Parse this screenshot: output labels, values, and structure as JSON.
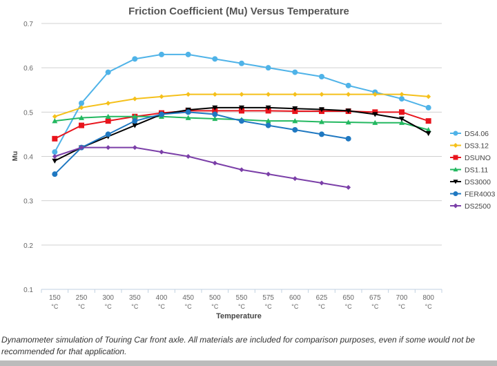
{
  "chart_data": {
    "type": "line",
    "title": "Friction Coefficient (Mu) Versus Temperature",
    "xlabel": "Temperature",
    "ylabel": "Mu",
    "ylim": [
      0.1,
      0.7
    ],
    "yticks": [
      "0.1",
      "0.2",
      "0.3",
      "0.4",
      "0.5",
      "0.6",
      "0.7"
    ],
    "grid": true,
    "legend_position": "right",
    "categories": [
      "150",
      "250",
      "300",
      "350",
      "400",
      "450",
      "500",
      "550",
      "575",
      "600",
      "625",
      "650",
      "675",
      "700",
      "800"
    ],
    "category_unit": "°C",
    "series": [
      {
        "name": "DS4.06",
        "color": "#4fb3e8",
        "marker": "circle",
        "values": [
          0.41,
          0.52,
          0.59,
          0.62,
          0.63,
          0.63,
          0.62,
          0.61,
          0.6,
          0.59,
          0.58,
          0.56,
          0.545,
          0.53,
          0.51
        ]
      },
      {
        "name": "DS3.12",
        "color": "#f5c01a",
        "marker": "diamond",
        "values": [
          0.49,
          0.51,
          0.52,
          0.53,
          0.535,
          0.54,
          0.54,
          0.54,
          0.54,
          0.54,
          0.54,
          0.54,
          0.54,
          0.54,
          0.535
        ]
      },
      {
        "name": "DSUNO",
        "color": "#e8141c",
        "marker": "square",
        "values": [
          0.44,
          0.47,
          0.48,
          0.49,
          0.498,
          0.503,
          0.503,
          0.503,
          0.503,
          0.502,
          0.502,
          0.502,
          0.5,
          0.5,
          0.48
        ]
      },
      {
        "name": "DS1.11",
        "color": "#23b860",
        "marker": "triangle",
        "values": [
          0.48,
          0.487,
          0.49,
          0.49,
          0.49,
          0.487,
          0.485,
          0.483,
          0.48,
          0.48,
          0.478,
          0.477,
          0.476,
          0.476,
          0.46
        ]
      },
      {
        "name": "DS3000",
        "color": "#000000",
        "marker": "triangle-down",
        "values": [
          0.39,
          0.42,
          0.445,
          0.47,
          0.495,
          0.505,
          0.51,
          0.51,
          0.51,
          0.508,
          0.506,
          0.503,
          0.495,
          0.485,
          0.452
        ]
      },
      {
        "name": "FER4003",
        "color": "#1f78c1",
        "marker": "circle",
        "values": [
          0.36,
          0.42,
          0.45,
          0.48,
          0.495,
          0.5,
          0.495,
          0.48,
          0.47,
          0.46,
          0.45,
          0.44,
          null,
          null,
          null
        ]
      },
      {
        "name": "DS2500",
        "color": "#7b3fa8",
        "marker": "diamond",
        "values": [
          0.4,
          0.42,
          0.42,
          0.42,
          0.41,
          0.4,
          0.385,
          0.37,
          0.36,
          0.35,
          0.34,
          0.33,
          null,
          null,
          null
        ]
      }
    ]
  },
  "caption": "Dynamometer simulation of Touring Car front axle. All materials are included for comparison purposes, even if some would not be recommended for that application."
}
